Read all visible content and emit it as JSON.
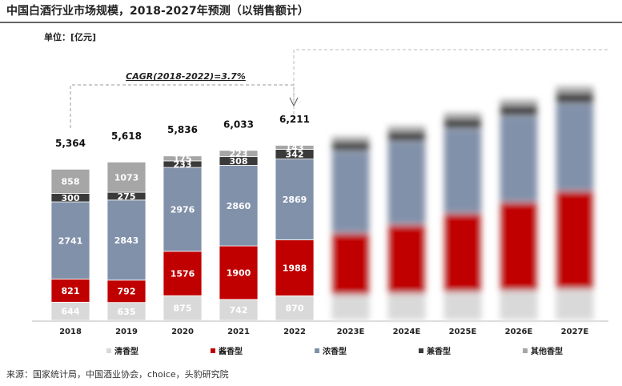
{
  "chart_data": {
    "type": "stacked_bar",
    "title": "中国白酒行业市场规模，2018-2027年预测（以销售额计）",
    "unit_label": "单位：[亿元]",
    "annotation": "CAGR(2018-2022)=3.7%",
    "source": "来源：国家统计局，中国酒业协会，choice，头豹研究院",
    "categories": [
      "2018",
      "2019",
      "2020",
      "2021",
      "2022",
      "2023E",
      "2024E",
      "2025E",
      "2026E",
      "2027E"
    ],
    "series": [
      {
        "name": "清香型",
        "color": "#d9d9d9",
        "values": [
          644,
          635,
          875,
          742,
          870,
          900,
          950,
          1000,
          1050,
          1100
        ]
      },
      {
        "name": "酱香型",
        "color": "#c00000",
        "values": [
          821,
          792,
          1576,
          1900,
          1988,
          2200,
          2450,
          2800,
          3150,
          3500
        ]
      },
      {
        "name": "浓香型",
        "color": "#8191aa",
        "values": [
          2741,
          2843,
          2976,
          2860,
          2869,
          2900,
          2950,
          3000,
          3050,
          3100
        ]
      },
      {
        "name": "兼香型",
        "color": "#3a3a3a",
        "values": [
          300,
          275,
          233,
          308,
          342,
          350,
          360,
          370,
          380,
          390
        ]
      },
      {
        "name": "其他香型",
        "color": "#a6a6a6",
        "values": [
          858,
          1073,
          175,
          223,
          143,
          180,
          190,
          200,
          210,
          220
        ]
      }
    ],
    "totals": [
      5364,
      5618,
      5836,
      6033,
      6211,
      null,
      null,
      null,
      null,
      null
    ],
    "total_labels": [
      "5,364",
      "5,618",
      "5,836",
      "6,033",
      "6,211",
      null,
      null,
      null,
      null,
      null
    ],
    "ylim": [
      0,
      8500
    ]
  }
}
